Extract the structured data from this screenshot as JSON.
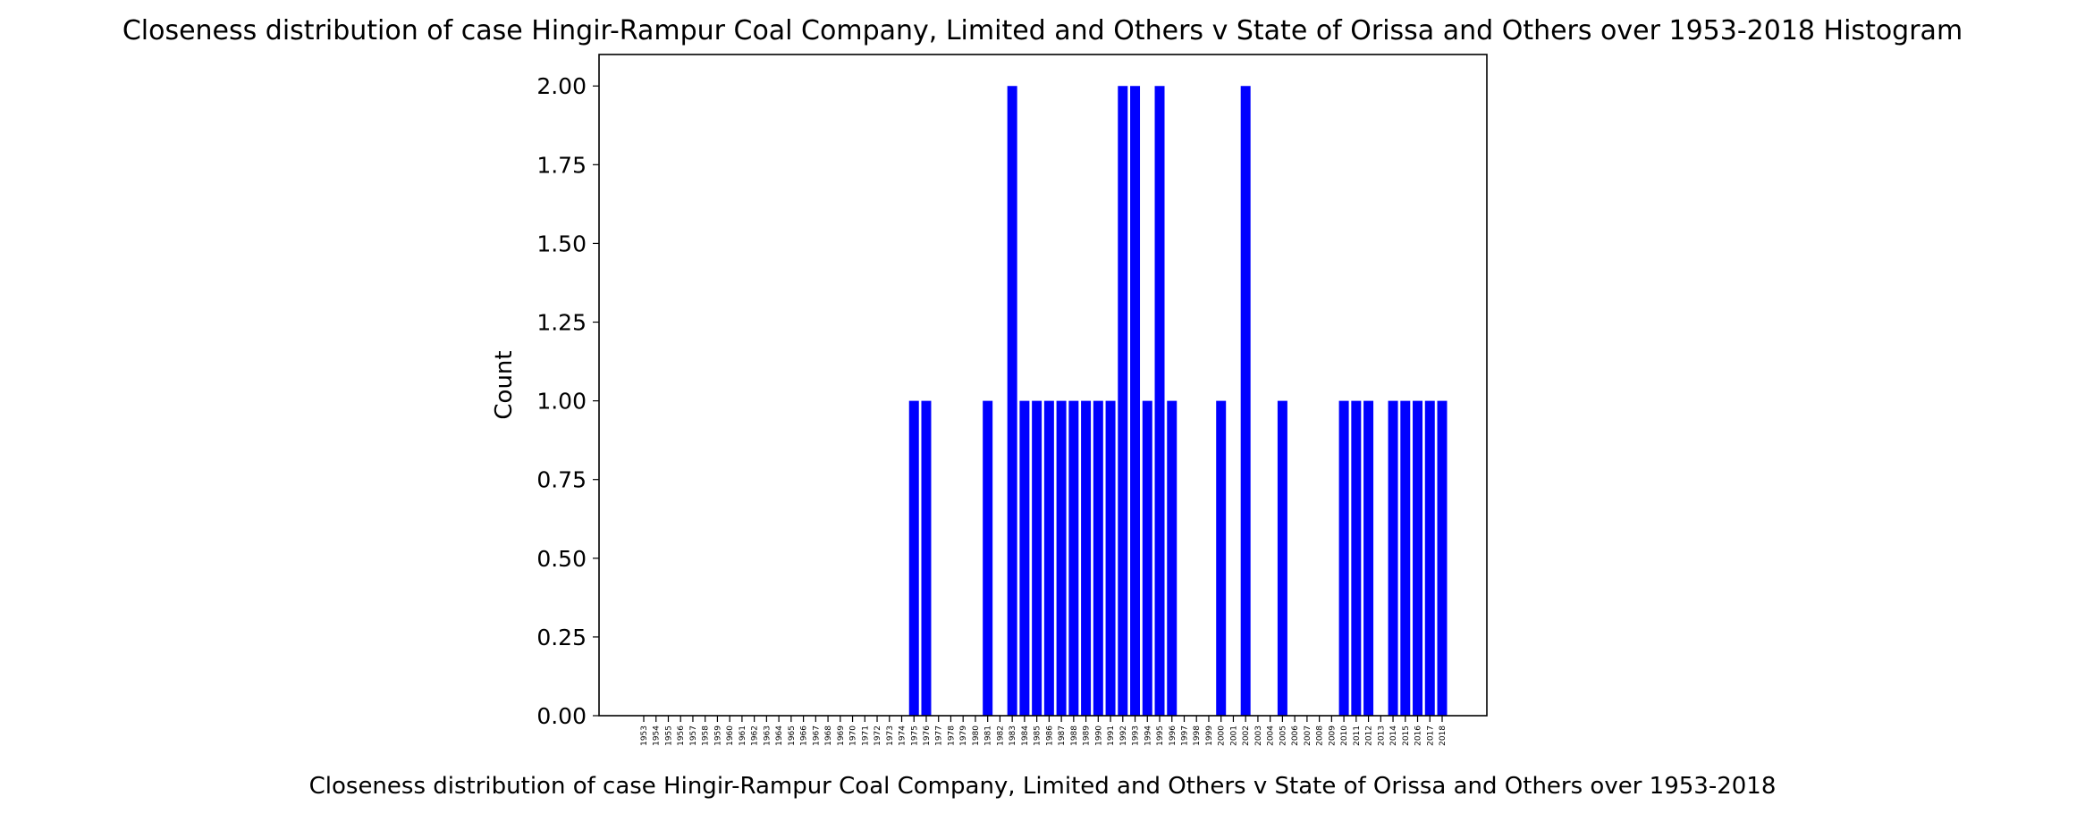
{
  "chart_data": {
    "type": "bar",
    "title": "Closeness distribution of case Hingir-Rampur Coal Company, Limited and Others v State of Orissa and Others over 1953-2018 Histogram",
    "xlabel": "Closeness distribution of case Hingir-Rampur Coal Company, Limited and Others v State of Orissa and Others over 1953-2018",
    "ylabel": "Count",
    "ylim": [
      0,
      2.1
    ],
    "yticks": [
      "0.00",
      "0.25",
      "0.50",
      "0.75",
      "1.00",
      "1.25",
      "1.50",
      "1.75",
      "2.00"
    ],
    "categories": [
      "1953",
      "1954",
      "1955",
      "1956",
      "1957",
      "1958",
      "1959",
      "1960",
      "1961",
      "1962",
      "1963",
      "1964",
      "1965",
      "1966",
      "1967",
      "1968",
      "1969",
      "1970",
      "1971",
      "1972",
      "1973",
      "1974",
      "1975",
      "1976",
      "1977",
      "1978",
      "1979",
      "1980",
      "1981",
      "1982",
      "1983",
      "1984",
      "1985",
      "1986",
      "1987",
      "1988",
      "1989",
      "1990",
      "1991",
      "1992",
      "1993",
      "1994",
      "1995",
      "1996",
      "1997",
      "1998",
      "1999",
      "2000",
      "2001",
      "2002",
      "2003",
      "2004",
      "2005",
      "2006",
      "2007",
      "2008",
      "2009",
      "2010",
      "2011",
      "2012",
      "2013",
      "2014",
      "2015",
      "2016",
      "2017",
      "2018"
    ],
    "values": [
      0,
      0,
      0,
      0,
      0,
      0,
      0,
      0,
      0,
      0,
      0,
      0,
      0,
      0,
      0,
      0,
      0,
      0,
      0,
      0,
      0,
      0,
      1,
      1,
      0,
      0,
      0,
      0,
      1,
      0,
      2,
      1,
      1,
      1,
      1,
      1,
      1,
      1,
      1,
      2,
      2,
      1,
      2,
      1,
      0,
      0,
      0,
      1,
      0,
      2,
      0,
      0,
      1,
      0,
      0,
      0,
      0,
      1,
      1,
      1,
      0,
      1,
      1,
      1,
      1,
      1
    ],
    "bar_color": "#0000ff",
    "grid": false,
    "legend": false
  }
}
